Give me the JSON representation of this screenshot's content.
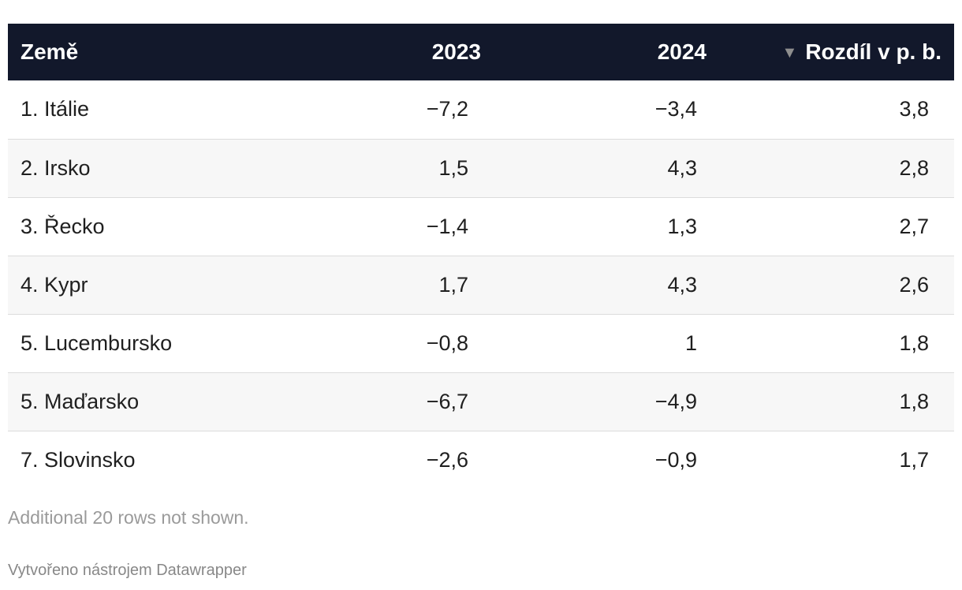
{
  "chart_data": {
    "type": "table",
    "columns": [
      "Země",
      "2023",
      "2024",
      "Rozdíl v p. b."
    ],
    "sorted_column": "Rozdíl v p. b.",
    "sort_direction": "descending",
    "rows": [
      [
        "1. Itálie",
        "−7,2",
        "−3,4",
        "3,8"
      ],
      [
        "2. Irsko",
        "1,5",
        "4,3",
        "2,8"
      ],
      [
        "3. Řecko",
        "−1,4",
        "1,3",
        "2,7"
      ],
      [
        "4. Kypr",
        "1,7",
        "4,3",
        "2,6"
      ],
      [
        "5. Lucembursko",
        "−0,8",
        "1",
        "1,8"
      ],
      [
        "5. Maďarsko",
        "−6,7",
        "−4,9",
        "1,8"
      ],
      [
        "7. Slovinsko",
        "−2,6",
        "−0,9",
        "1,7"
      ]
    ]
  },
  "colors": {
    "header_bg": "#12182b",
    "header_text": "#ffffff",
    "stripe_bg": "#f7f7f7"
  },
  "sort_icon": "triangle-down-icon",
  "footer": {
    "note": "Additional 20 rows not shown.",
    "credit": "Vytvořeno nástrojem Datawrapper"
  }
}
